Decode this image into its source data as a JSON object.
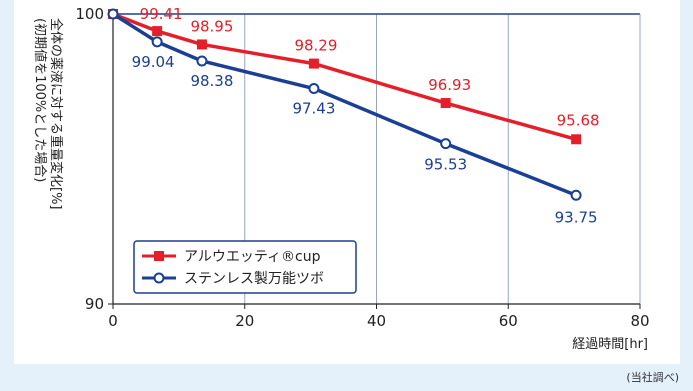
{
  "chart_data": {
    "type": "line",
    "x": [
      0,
      6.7,
      13.5,
      30.5,
      50.5,
      70.3
    ],
    "xlabel": "経過時間[hr]",
    "ylabel": "全体の薬液に対する重量変化[%]",
    "ylabel_sub": "(初期値を100%とした場合)",
    "xlim": [
      0,
      80
    ],
    "ylim": [
      90,
      100
    ],
    "xticks": [
      "0",
      "20",
      "40",
      "60",
      "80"
    ],
    "yticks": [
      "100",
      "90"
    ],
    "grid": true,
    "legend_position": "lower-left",
    "series": [
      {
        "name": "アルウエッティ®cup",
        "color": "#e51f2a",
        "marker": "filled-square",
        "values": [
          100,
          99.41,
          98.95,
          98.29,
          96.93,
          95.68
        ],
        "labels": [
          "",
          "99.41",
          "98.95",
          "98.29",
          "96.93",
          "95.68"
        ]
      },
      {
        "name": "ステンレス製万能ツボ",
        "color": "#1b3f94",
        "marker": "open-circle",
        "values": [
          100,
          99.04,
          98.38,
          97.43,
          95.53,
          93.75
        ],
        "labels": [
          "",
          "99.04",
          "98.38",
          "97.43",
          "95.53",
          "93.75"
        ]
      }
    ]
  },
  "note": "(当社調べ)"
}
